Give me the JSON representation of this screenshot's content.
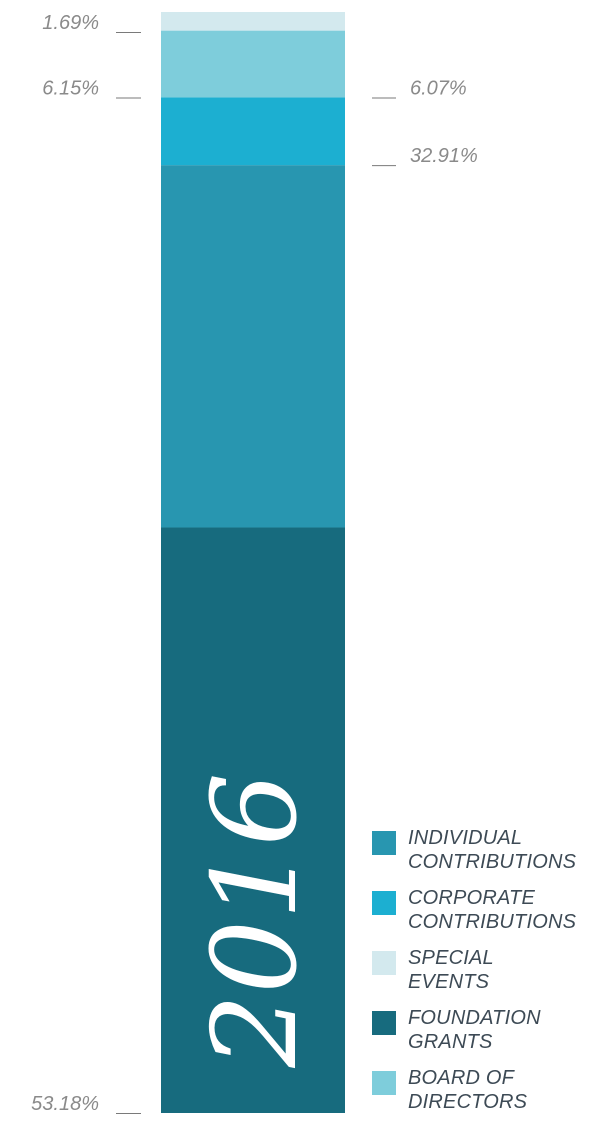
{
  "chart_data": {
    "type": "bar",
    "orientation": "vertical-stacked",
    "categories": [
      "2016"
    ],
    "year_label": "2016",
    "series": [
      {
        "name": "FOUNDATION GRANTS",
        "values": [
          53.18
        ],
        "label": "53.18%",
        "color": "#176b7e"
      },
      {
        "name": "INDIVIDUAL CONTRIBUTIONS",
        "values": [
          32.91
        ],
        "label": "32.91%",
        "color": "#2896b0"
      },
      {
        "name": "CORPORATE CONTRIBUTIONS",
        "values": [
          6.15
        ],
        "label": "6.15%",
        "color": "#1cafd1"
      },
      {
        "name": "BOARD OF DIRECTORS",
        "values": [
          6.07
        ],
        "label": "6.07%",
        "color": "#7ecddb"
      },
      {
        "name": "SPECIAL EVENTS",
        "values": [
          1.69
        ],
        "label": "1.69%",
        "color": "#d3e9ee"
      }
    ],
    "title": "",
    "xlabel": "",
    "ylabel": "",
    "ylim": [
      0,
      100
    ],
    "grid": false,
    "legend_position": "bottom-right"
  },
  "legend": {
    "items": [
      {
        "line1": "INDIVIDUAL",
        "line2": "CONTRIBUTIONS",
        "color": "#2896b0"
      },
      {
        "line1": "CORPORATE",
        "line2": "CONTRIBUTIONS",
        "color": "#1cafd1"
      },
      {
        "line1": "SPECIAL",
        "line2": "EVENTS",
        "color": "#d3e9ee"
      },
      {
        "line1": "FOUNDATION",
        "line2": "GRANTS",
        "color": "#176b7e"
      },
      {
        "line1": "BOARD OF",
        "line2": "DIRECTORS",
        "color": "#7ecddb"
      }
    ]
  }
}
